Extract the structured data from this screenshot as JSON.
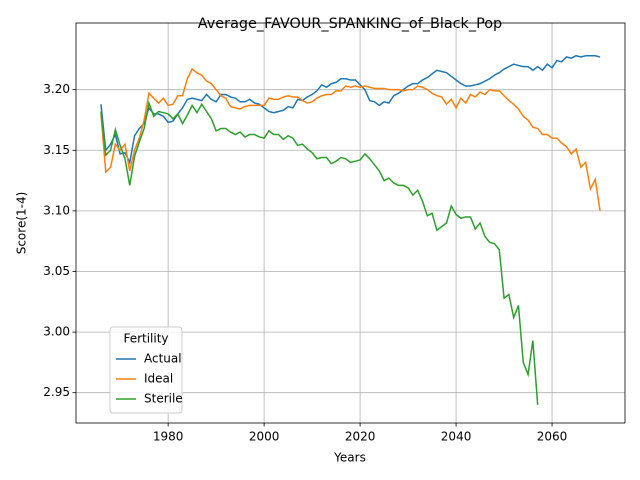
{
  "chart_data": {
    "type": "line",
    "title": "Average_FAVOUR_SPANKING_of_Black_Pop",
    "xlabel": "Years",
    "ylabel": "Score(1-4)",
    "x": [
      1966,
      1967,
      1968,
      1969,
      1970,
      1971,
      1972,
      1973,
      1974,
      1975,
      1976,
      1977,
      1978,
      1979,
      1980,
      1981,
      1982,
      1983,
      1984,
      1985,
      1986,
      1987,
      1988,
      1989,
      1990,
      1991,
      1992,
      1993,
      1994,
      1995,
      1996,
      1997,
      1998,
      1999,
      2000,
      2001,
      2002,
      2003,
      2004,
      2005,
      2006,
      2007,
      2008,
      2009,
      2010,
      2011,
      2012,
      2013,
      2014,
      2015,
      2016,
      2017,
      2018,
      2019,
      2020,
      2021,
      2022,
      2023,
      2024,
      2025,
      2026,
      2027,
      2028,
      2029,
      2030,
      2031,
      2032,
      2033,
      2034,
      2035,
      2036,
      2037,
      2038,
      2039,
      2040,
      2041,
      2042,
      2043,
      2044,
      2045,
      2046,
      2047,
      2048,
      2049,
      2050,
      2051,
      2052,
      2053,
      2054,
      2055,
      2056,
      2057,
      2058,
      2059,
      2060,
      2061,
      2062,
      2063,
      2064,
      2065,
      2066,
      2067,
      2068,
      2069,
      2070
    ],
    "series": [
      {
        "name": "Actual",
        "color": "#1f77b4",
        "values": [
          3.188,
          3.15,
          3.155,
          3.163,
          3.147,
          3.148,
          3.14,
          3.162,
          3.168,
          3.172,
          3.185,
          3.18,
          3.18,
          3.178,
          3.173,
          3.174,
          3.18,
          3.185,
          3.192,
          3.193,
          3.192,
          3.191,
          3.196,
          3.192,
          3.19,
          3.196,
          3.196,
          3.194,
          3.193,
          3.19,
          3.19,
          3.192,
          3.189,
          3.188,
          3.185,
          3.182,
          3.181,
          3.182,
          3.183,
          3.186,
          3.185,
          3.192,
          3.191,
          3.194,
          3.196,
          3.199,
          3.204,
          3.202,
          3.205,
          3.206,
          3.209,
          3.209,
          3.208,
          3.208,
          3.204,
          3.2,
          3.191,
          3.19,
          3.187,
          3.19,
          3.189,
          3.195,
          3.197,
          3.2,
          3.203,
          3.205,
          3.205,
          3.208,
          3.21,
          3.213,
          3.216,
          3.215,
          3.214,
          3.211,
          3.208,
          3.205,
          3.203,
          3.203,
          3.204,
          3.205,
          3.207,
          3.209,
          3.212,
          3.214,
          3.217,
          3.219,
          3.221,
          3.22,
          3.219,
          3.219,
          3.216,
          3.219,
          3.216,
          3.221,
          3.218,
          3.224,
          3.223,
          3.227,
          3.226,
          3.228,
          3.227,
          3.228,
          3.228,
          3.228,
          3.227
        ]
      },
      {
        "name": "Ideal",
        "color": "#ff7f0e",
        "values": [
          3.18,
          3.132,
          3.136,
          3.155,
          3.15,
          3.155,
          3.133,
          3.15,
          3.16,
          3.175,
          3.197,
          3.193,
          3.189,
          3.193,
          3.187,
          3.188,
          3.195,
          3.195,
          3.209,
          3.217,
          3.214,
          3.212,
          3.207,
          3.205,
          3.2,
          3.195,
          3.193,
          3.186,
          3.185,
          3.184,
          3.186,
          3.187,
          3.187,
          3.187,
          3.187,
          3.193,
          3.192,
          3.192,
          3.194,
          3.195,
          3.194,
          3.194,
          3.191,
          3.189,
          3.19,
          3.193,
          3.195,
          3.196,
          3.196,
          3.199,
          3.199,
          3.203,
          3.202,
          3.203,
          3.202,
          3.203,
          3.202,
          3.201,
          3.201,
          3.201,
          3.2,
          3.2,
          3.2,
          3.199,
          3.2,
          3.2,
          3.203,
          3.202,
          3.2,
          3.197,
          3.195,
          3.194,
          3.188,
          3.192,
          3.185,
          3.193,
          3.189,
          3.196,
          3.194,
          3.198,
          3.196,
          3.2,
          3.199,
          3.199,
          3.195,
          3.191,
          3.188,
          3.184,
          3.178,
          3.175,
          3.169,
          3.168,
          3.163,
          3.163,
          3.16,
          3.16,
          3.156,
          3.153,
          3.147,
          3.151,
          3.136,
          3.14,
          3.118,
          3.126,
          3.1
        ]
      },
      {
        "name": "Sterile",
        "color": "#2ca02c",
        "values": [
          3.182,
          3.146,
          3.15,
          3.167,
          3.154,
          3.143,
          3.121,
          3.145,
          3.157,
          3.168,
          3.189,
          3.178,
          3.182,
          3.181,
          3.18,
          3.176,
          3.18,
          3.172,
          3.179,
          3.187,
          3.181,
          3.188,
          3.182,
          3.176,
          3.166,
          3.168,
          3.168,
          3.165,
          3.163,
          3.165,
          3.161,
          3.163,
          3.163,
          3.161,
          3.16,
          3.166,
          3.163,
          3.163,
          3.159,
          3.162,
          3.16,
          3.154,
          3.155,
          3.151,
          3.148,
          3.143,
          3.144,
          3.144,
          3.139,
          3.141,
          3.144,
          3.143,
          3.14,
          3.141,
          3.142,
          3.147,
          3.143,
          3.138,
          3.133,
          3.125,
          3.127,
          3.123,
          3.121,
          3.121,
          3.119,
          3.113,
          3.117,
          3.108,
          3.096,
          3.098,
          3.084,
          3.087,
          3.09,
          3.104,
          3.097,
          3.094,
          3.095,
          3.095,
          3.085,
          3.09,
          3.079,
          3.074,
          3.073,
          3.068,
          3.028,
          3.031,
          3.012,
          3.022,
          2.975,
          2.965,
          2.993,
          2.94,
          null,
          null,
          null,
          null,
          null,
          null,
          null,
          null,
          null,
          null,
          null,
          null,
          null
        ]
      }
    ],
    "xlim": [
      1960.8,
      2075.2
    ],
    "ylim": [
      2.925,
      3.255
    ],
    "xticks": [
      1980,
      2000,
      2020,
      2040,
      2060
    ],
    "yticks": [
      {
        "value": 2.95,
        "label": "2.95"
      },
      {
        "value": 3.0,
        "label": "3.00"
      },
      {
        "value": 3.05,
        "label": "3.05"
      },
      {
        "value": 3.1,
        "label": "3.10"
      },
      {
        "value": 3.15,
        "label": "3.15"
      },
      {
        "value": 3.2,
        "label": "3.20"
      }
    ],
    "grid": true,
    "legend_title": "Fertility",
    "legend_position": "lower left"
  }
}
